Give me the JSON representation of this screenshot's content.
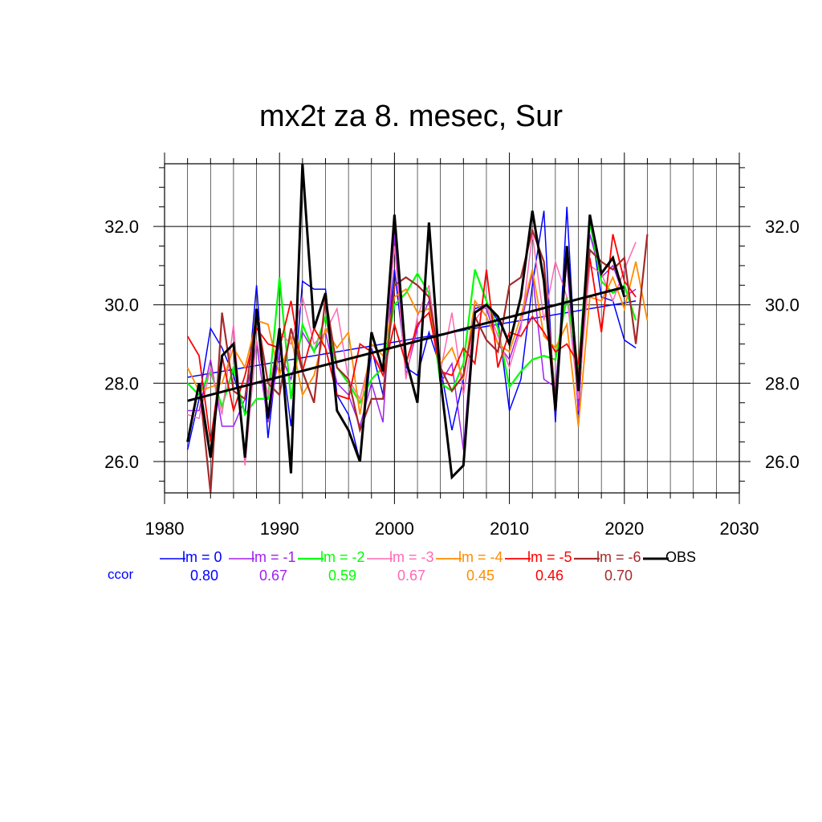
{
  "chart_data": {
    "type": "line",
    "title": "mx2t za 8. mesec, Sur",
    "xlabel": "",
    "ylabel": "",
    "xlim": [
      1980,
      2030
    ],
    "ylim": [
      25.2,
      33.6
    ],
    "xticks": [
      1980,
      1990,
      2000,
      2010,
      2020,
      2030
    ],
    "yticks": [
      26.0,
      28.0,
      30.0,
      32.0
    ],
    "xtick_labels": [
      "1980",
      "1990",
      "2000",
      "2010",
      "2020",
      "2030"
    ],
    "ytick_labels": [
      "26.0",
      "28.0",
      "30.0",
      "32.0"
    ],
    "grid": true,
    "legend_position": "bottom",
    "ccor_label": "ccor",
    "series": [
      {
        "name": "lm = 0",
        "color": "#0000ff",
        "ccor": "0.80",
        "width": 1.5,
        "x": [
          1982,
          1983,
          1984,
          1985,
          1986,
          1987,
          1988,
          1989,
          1990,
          1991,
          1992,
          1993,
          1994,
          1995,
          1996,
          1997,
          1998,
          1999,
          2000,
          2001,
          2002,
          2003,
          2004,
          2005,
          2006,
          2007,
          2008,
          2009,
          2010,
          2011,
          2012,
          2013,
          2014,
          2015,
          2016,
          2017,
          2018,
          2019,
          2020,
          2021
        ],
        "y": [
          26.3,
          27.6,
          29.4,
          28.9,
          28.2,
          27.2,
          30.5,
          26.6,
          29.2,
          26.9,
          30.6,
          30.4,
          30.4,
          27.7,
          27.2,
          26.0,
          28.9,
          27.7,
          30.9,
          28.4,
          28.2,
          29.3,
          28.4,
          26.8,
          28.1,
          29.9,
          30.0,
          29.6,
          27.3,
          28.1,
          30.5,
          32.4,
          27.0,
          32.5,
          27.2,
          32.2,
          30.2,
          30.1,
          29.1,
          28.9
        ],
        "trend": [
          28.15,
          30.1
        ]
      },
      {
        "name": "lm = -1",
        "color": "#a020f0",
        "ccor": "0.67",
        "width": 1.5,
        "x": [
          1982,
          1983,
          1984,
          1985,
          1986,
          1987,
          1988,
          1989,
          1990,
          1991,
          1992,
          1993,
          1994,
          1995,
          1996,
          1997,
          1998,
          1999,
          2000,
          2001,
          2002,
          2003,
          2004,
          2005,
          2006,
          2007,
          2008,
          2009,
          2010,
          2011,
          2012,
          2013,
          2014,
          2015,
          2016,
          2017,
          2018,
          2019,
          2020,
          2021
        ],
        "y": [
          27.3,
          27.3,
          28.6,
          26.9,
          26.9,
          27.6,
          29.0,
          27.0,
          28.8,
          28.1,
          29.3,
          28.8,
          29.3,
          28.0,
          27.7,
          26.9,
          28.0,
          27.0,
          31.8,
          28.2,
          29.4,
          30.1,
          28.0,
          28.5,
          26.3,
          30.0,
          29.9,
          29.0,
          28.6,
          29.5,
          30.8,
          28.1,
          27.9,
          31.1,
          27.3,
          31.8,
          30.7,
          31.0,
          30.2,
          30.4
        ]
      },
      {
        "name": "lm = -2",
        "color": "#00ff00",
        "ccor": "0.59",
        "width": 2.2,
        "x": [
          1982,
          1983,
          1984,
          1985,
          1986,
          1987,
          1988,
          1989,
          1990,
          1991,
          1992,
          1993,
          1994,
          1995,
          1996,
          1997,
          1998,
          1999,
          2000,
          2001,
          2002,
          2003,
          2004,
          2005,
          2006,
          2007,
          2008,
          2009,
          2010,
          2011,
          2012,
          2013,
          2014,
          2015,
          2016,
          2017,
          2018,
          2019,
          2020,
          2021
        ],
        "y": [
          28.0,
          27.7,
          28.3,
          27.4,
          28.4,
          27.2,
          27.6,
          27.6,
          30.7,
          27.6,
          29.5,
          28.8,
          29.7,
          28.4,
          28.0,
          27.5,
          28.1,
          28.4,
          30.0,
          30.3,
          30.8,
          30.3,
          28.0,
          27.8,
          28.5,
          30.9,
          30.1,
          29.4,
          27.9,
          28.3,
          28.6,
          28.7,
          28.6,
          30.2,
          28.4,
          32.1,
          30.6,
          30.3,
          30.5,
          29.6
        ]
      },
      {
        "name": "lm = -3",
        "color": "#ff69b4",
        "ccor": "0.67",
        "width": 1.5,
        "x": [
          1982,
          1983,
          1984,
          1985,
          1986,
          1987,
          1988,
          1989,
          1990,
          1991,
          1992,
          1993,
          1994,
          1995,
          1996,
          1997,
          1998,
          1999,
          2000,
          2001,
          2002,
          2003,
          2004,
          2005,
          2006,
          2007,
          2008,
          2009,
          2010,
          2011,
          2012,
          2013,
          2014,
          2015,
          2016,
          2017,
          2018,
          2019,
          2020,
          2021
        ],
        "y": [
          27.2,
          27.1,
          28.4,
          27.2,
          29.5,
          25.9,
          29.1,
          27.7,
          29.3,
          29.0,
          30.2,
          29.0,
          29.3,
          29.9,
          28.1,
          27.6,
          28.8,
          28.3,
          31.5,
          28.1,
          29.7,
          30.5,
          28.3,
          29.8,
          27.7,
          29.6,
          30.0,
          29.2,
          28.4,
          29.4,
          31.8,
          29.6,
          31.1,
          30.2,
          27.6,
          31.0,
          30.8,
          30.1,
          30.9,
          31.6
        ]
      },
      {
        "name": "lm = -4",
        "color": "#ff8c00",
        "ccor": "0.45",
        "width": 1.8,
        "x": [
          1982,
          1983,
          1984,
          1985,
          1986,
          1987,
          1988,
          1989,
          1990,
          1991,
          1992,
          1993,
          1994,
          1995,
          1996,
          1997,
          1998,
          1999,
          2000,
          2001,
          2002,
          2003,
          2004,
          2005,
          2006,
          2007,
          2008,
          2009,
          2010,
          2011,
          2012,
          2013,
          2014,
          2015,
          2016,
          2017,
          2018,
          2019,
          2020,
          2021,
          2022
        ],
        "y": [
          28.4,
          27.8,
          27.9,
          28.0,
          28.9,
          28.4,
          29.6,
          29.5,
          28.2,
          29.2,
          27.7,
          28.2,
          29.4,
          28.9,
          29.3,
          27.2,
          29.0,
          28.7,
          30.2,
          30.4,
          29.8,
          29.9,
          28.5,
          28.9,
          28.1,
          30.1,
          29.7,
          29.0,
          28.8,
          29.7,
          30.9,
          29.2,
          28.9,
          29.5,
          26.9,
          30.2,
          30.1,
          30.7,
          29.9,
          31.1,
          29.6
        ]
      },
      {
        "name": "lm = -5",
        "color": "#ff0000",
        "ccor": "0.46",
        "width": 1.8,
        "x": [
          1982,
          1983,
          1984,
          1985,
          1986,
          1987,
          1988,
          1989,
          1990,
          1991,
          1992,
          1993,
          1994,
          1995,
          1996,
          1997,
          1998,
          1999,
          2000,
          2001,
          2002,
          2003,
          2004,
          2005,
          2006,
          2007,
          2008,
          2009,
          2010,
          2011,
          2012,
          2013,
          2014,
          2015,
          2016,
          2017,
          2018,
          2019,
          2020,
          2021
        ],
        "y": [
          29.2,
          28.7,
          26.5,
          28.7,
          27.3,
          28.2,
          29.4,
          29.0,
          28.9,
          30.1,
          28.3,
          29.4,
          28.9,
          27.7,
          27.6,
          29.0,
          28.8,
          28.2,
          29.5,
          28.5,
          29.5,
          29.8,
          28.3,
          28.2,
          28.9,
          28.5,
          30.9,
          28.4,
          29.3,
          29.2,
          29.7,
          29.3,
          28.8,
          29.0,
          28.5,
          31.2,
          29.3,
          31.8,
          30.6,
          30.2
        ]
      },
      {
        "name": "lm = -6",
        "color": "#a52a2a",
        "ccor": "0.70",
        "width": 2.2,
        "x": [
          1982,
          1983,
          1984,
          1985,
          1986,
          1987,
          1988,
          1989,
          1990,
          1991,
          1992,
          1993,
          1994,
          1995,
          1996,
          1997,
          1998,
          1999,
          2000,
          2001,
          2002,
          2003,
          2004,
          2005,
          2006,
          2007,
          2008,
          2009,
          2010,
          2011,
          2012,
          2013,
          2014,
          2015,
          2016,
          2017,
          2018,
          2019,
          2020,
          2021,
          2022
        ],
        "y": [
          26.5,
          28.0,
          25.2,
          29.8,
          27.8,
          27.6,
          29.8,
          28.0,
          27.7,
          29.4,
          28.3,
          27.5,
          30.2,
          28.4,
          28.1,
          26.8,
          27.6,
          27.6,
          30.5,
          30.7,
          30.5,
          30.2,
          28.4,
          27.8,
          28.2,
          29.7,
          29.1,
          28.8,
          30.5,
          30.7,
          31.9,
          31.1,
          27.5,
          31.3,
          28.1,
          31.4,
          31.1,
          30.9,
          31.2,
          29.0,
          31.8
        ]
      },
      {
        "name": "OBS",
        "color": "#000000",
        "ccor": "",
        "width": 3.0,
        "x": [
          1982,
          1983,
          1984,
          1985,
          1986,
          1987,
          1988,
          1989,
          1990,
          1991,
          1992,
          1993,
          1994,
          1995,
          1996,
          1997,
          1998,
          1999,
          2000,
          2001,
          2002,
          2003,
          2004,
          2005,
          2006,
          2007,
          2008,
          2009,
          2010,
          2011,
          2012,
          2013,
          2014,
          2015,
          2016,
          2017,
          2018,
          2019,
          2020
        ],
        "y": [
          26.5,
          28.0,
          26.1,
          28.7,
          29.0,
          26.1,
          29.9,
          27.1,
          29.4,
          25.7,
          33.6,
          29.4,
          30.3,
          27.3,
          26.8,
          26.0,
          29.3,
          28.3,
          32.3,
          28.6,
          27.5,
          32.1,
          28.1,
          25.6,
          25.9,
          29.8,
          30.0,
          29.7,
          29.0,
          30.2,
          32.4,
          30.6,
          27.3,
          31.5,
          27.8,
          32.3,
          30.8,
          31.2,
          30.2
        ],
        "trend": [
          27.55,
          30.45
        ]
      }
    ]
  }
}
